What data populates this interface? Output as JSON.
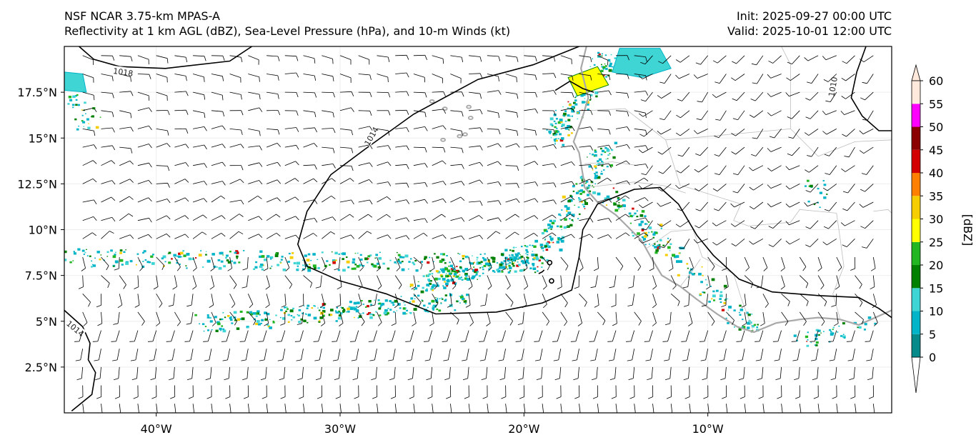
{
  "header": {
    "title_line1": "NSF NCAR 3.75-km MPAS-A",
    "title_line2": "Reflectivity at 1 km AGL (dBZ), Sea-Level Pressure (hPa), and 10-m Winds (kt)",
    "init": "Init: 2025-09-27 00:00 UTC",
    "valid": "Valid: 2025-10-01 12:00 UTC"
  },
  "map": {
    "lon_range": [
      -45,
      0
    ],
    "lat_range": [
      0,
      20
    ],
    "lon_ticks": [
      {
        "lon": -40,
        "label": "40°W"
      },
      {
        "lon": -30,
        "label": "30°W"
      },
      {
        "lon": -20,
        "label": "20°W"
      },
      {
        "lon": -10,
        "label": "10°W"
      }
    ],
    "lat_ticks": [
      {
        "lat": 2.5,
        "label": "2.5°N"
      },
      {
        "lat": 5,
        "label": "5°N"
      },
      {
        "lat": 7.5,
        "label": "7.5°N"
      },
      {
        "lat": 10,
        "label": "10°N"
      },
      {
        "lat": 12.5,
        "label": "12.5°N"
      },
      {
        "lat": 15,
        "label": "15°N"
      },
      {
        "lat": 17.5,
        "label": "17.5°N"
      }
    ],
    "isobar_labels": [
      {
        "text": "1018",
        "lon": -41.8,
        "lat": 18.6,
        "angle": 8
      },
      {
        "text": "1014",
        "lon": -28.3,
        "lat": 15.1,
        "angle": -60
      },
      {
        "text": "1014",
        "lon": -44.4,
        "lat": 4.6,
        "angle": 40
      },
      {
        "text": "1010",
        "lon": -3.2,
        "lat": 17.8,
        "angle": -80
      }
    ],
    "colors": {
      "isobar": "#000000",
      "coastline": "#a8a8a8",
      "border": "#bdbdbd",
      "barb": "#000000"
    }
  },
  "colorbar": {
    "label": "[dBZ]",
    "levels": [
      "0",
      "5",
      "10",
      "15",
      "20",
      "25",
      "30",
      "35",
      "40",
      "45",
      "50",
      "55",
      "60"
    ],
    "colors": [
      "#ffffff",
      "#078a8a",
      "#02b4c8",
      "#3fd5d5",
      "#008000",
      "#23b623",
      "#ffff00",
      "#f5cd00",
      "#ff8000",
      "#d20000",
      "#8b0000",
      "#ff00ff",
      "#ffe8dc"
    ]
  }
}
